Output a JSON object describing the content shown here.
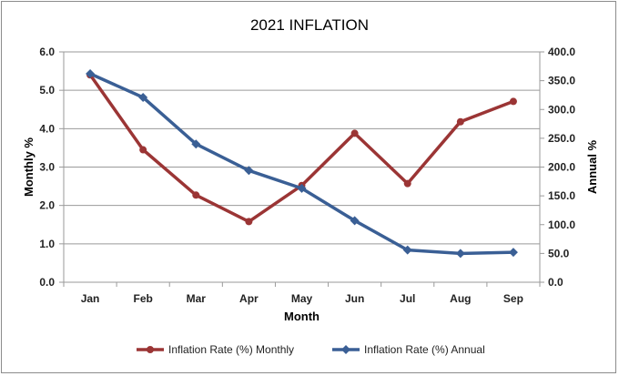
{
  "chart_data": {
    "type": "line",
    "title": "2021 INFLATION",
    "xlabel": "Month",
    "ylabel": "Monthly %",
    "y2label": "Annual %",
    "categories": [
      "Jan",
      "Feb",
      "Mar",
      "Apr",
      "May",
      "Jun",
      "Jul",
      "Aug",
      "Sep"
    ],
    "ylim": [
      0,
      6
    ],
    "y2lim": [
      0,
      400
    ],
    "yticks": [
      "0.0",
      "1.0",
      "2.0",
      "3.0",
      "4.0",
      "5.0",
      "6.0"
    ],
    "y2ticks": [
      "0.0",
      "50.0",
      "100.0",
      "150.0",
      "200.0",
      "250.0",
      "300.0",
      "350.0",
      "400.0"
    ],
    "grid": true,
    "legend_position": "bottom",
    "series": [
      {
        "name": "Inflation Rate (%) Monthly",
        "axis": "left",
        "color": "#9b3535",
        "marker": "circle",
        "values": [
          5.4,
          3.45,
          2.27,
          1.58,
          2.52,
          3.88,
          2.57,
          4.18,
          4.71
        ]
      },
      {
        "name": "Inflation Rate (%)  Annual",
        "axis": "right",
        "color": "#3a5f95",
        "marker": "diamond",
        "values": [
          362,
          321,
          240,
          194,
          163,
          107,
          56,
          50,
          52
        ]
      }
    ]
  }
}
